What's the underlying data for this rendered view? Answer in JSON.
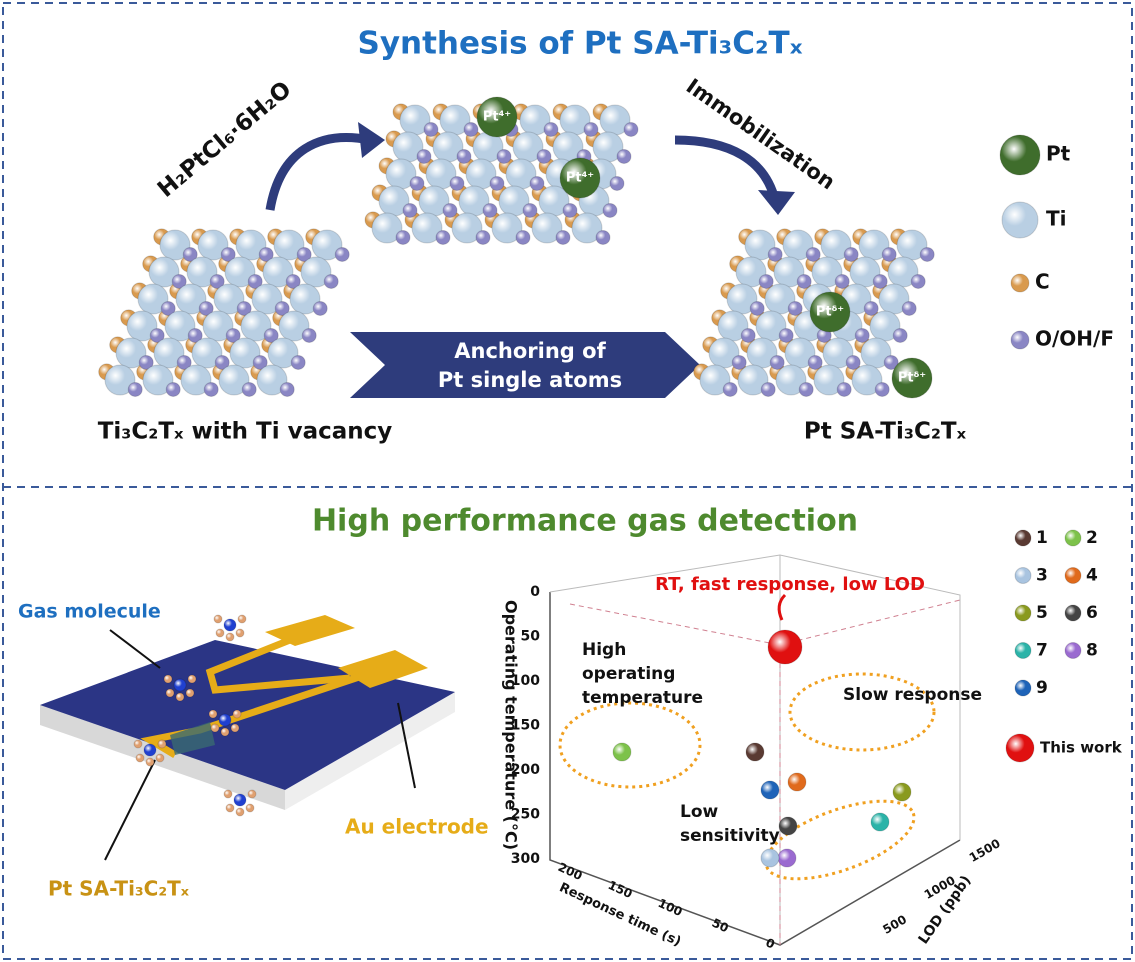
{
  "synthesis": {
    "title": "Synthesis of Pt SA-Ti₃C₂Tₓ",
    "reagent": "H₂PtCl₆·6H₂O",
    "step": "Immobilization",
    "arrow_label": [
      "Anchoring of",
      "Pt single atoms"
    ],
    "start_label": "Ti₃C₂Tₓ with Ti vacancy",
    "end_label": "Pt SA-Ti₃C₂Tₓ",
    "ion_labels": [
      "Pt⁴⁺",
      "Pt⁴⁺"
    ],
    "site_labels": [
      "Ptᵟ⁺",
      "Ptᵟ⁺"
    ],
    "legend": [
      {
        "label": "Pt",
        "color": "#3f6d2c"
      },
      {
        "label": "Ti",
        "color": "#b9cfe3"
      },
      {
        "label": "C",
        "color": "#d99a4e"
      },
      {
        "label": "O/OH/F",
        "color": "#8a86c4"
      }
    ]
  },
  "detection": {
    "title": "High performance gas detection",
    "device_labels": [
      "Gas molecule",
      "Au electrode",
      "Pt SA-Ti₃C₂Tₓ"
    ],
    "plot": {
      "z_axis_title": "Operating temperature (°C)",
      "x_axis_title": "Response time (s)",
      "y_axis_title": "LOD (ppb)",
      "z_ticks": [
        "0",
        "50",
        "100",
        "150",
        "200",
        "250",
        "300"
      ],
      "x_ticks": [
        "200",
        "150",
        "100",
        "50",
        "0"
      ],
      "y_ticks": [
        "500",
        "1000",
        "1500"
      ],
      "annotations": [
        "RT, fast response, low LOD",
        "High",
        "operating",
        "temperature",
        "Slow response",
        "Low",
        "sensitivity"
      ]
    },
    "legend": [
      {
        "label": "1",
        "color": "#5a3a32"
      },
      {
        "label": "2",
        "color": "#7dc24a"
      },
      {
        "label": "3",
        "color": "#a9c4e0"
      },
      {
        "label": "4",
        "color": "#e06a1c"
      },
      {
        "label": "5",
        "color": "#8a9a1e"
      },
      {
        "label": "6",
        "color": "#444444"
      },
      {
        "label": "7",
        "color": "#2bb3a8"
      },
      {
        "label": "8",
        "color": "#9a6ad0"
      },
      {
        "label": "9",
        "color": "#1e63b8"
      },
      {
        "label": "This work",
        "color": "#e01010"
      }
    ]
  }
}
